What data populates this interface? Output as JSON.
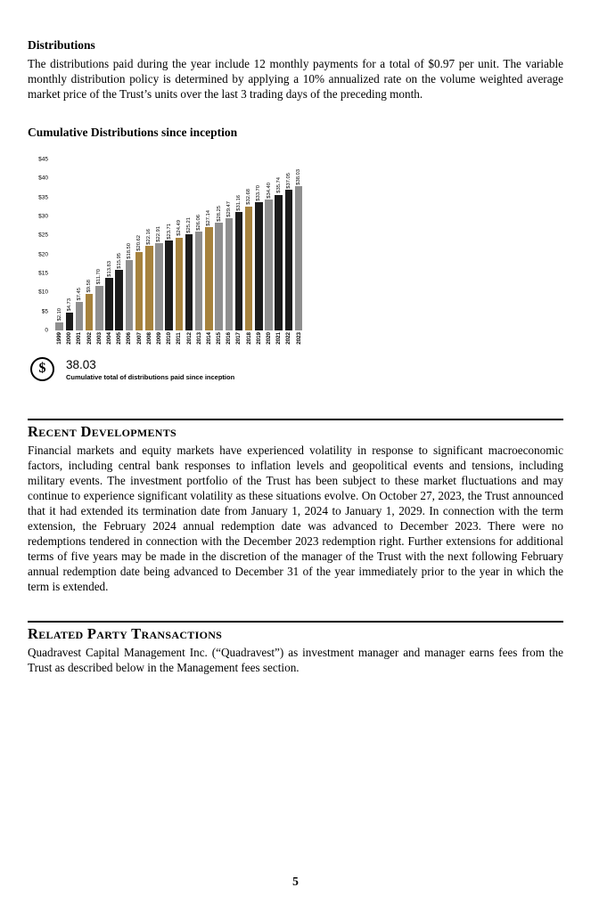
{
  "page": {
    "number": "5"
  },
  "distributions": {
    "heading": "Distributions",
    "body": "The distributions paid during the year include 12 monthly payments for a total of $0.97 per unit. The variable monthly distribution policy is determined by applying a 10% annualized rate on the volume weighted average market price of the Trust’s units over the last 3 trading days of the preceding month."
  },
  "chart": {
    "heading": "Cumulative Distributions since inception",
    "summary_value": "38.03",
    "summary_caption": "Cumulative total of distributions paid since inception",
    "dollar_icon_glyph": "$"
  },
  "chart_data": {
    "type": "bar",
    "title": "Cumulative Distributions since inception",
    "categories": [
      "1999",
      "2000",
      "2001",
      "2002",
      "2003",
      "2004",
      "2005",
      "2006",
      "2007",
      "2008",
      "2009",
      "2010",
      "2011",
      "2012",
      "2013",
      "2014",
      "2015",
      "2016",
      "2017",
      "2018",
      "2019",
      "2020",
      "2021",
      "2022",
      "2023"
    ],
    "values": [
      2.1,
      4.73,
      7.45,
      9.58,
      11.7,
      13.83,
      15.95,
      18.5,
      20.62,
      22.16,
      22.91,
      23.71,
      24.49,
      25.21,
      26.06,
      27.14,
      28.25,
      29.47,
      31.16,
      32.68,
      33.7,
      34.4,
      35.74,
      37.05,
      38.03
    ],
    "labels": [
      "$2.10",
      "$4.73",
      "$7.45",
      "$9.58",
      "$11.70",
      "$13.83",
      "$15.95",
      "$18.50",
      "$20.62",
      "$22.16",
      "$22.91",
      "$23.71",
      "$24.49",
      "$25.21",
      "$26.06",
      "$27.14",
      "$28.25",
      "$29.47",
      "$31.16",
      "$32.68",
      "$33.70",
      "$34.40",
      "$35.74",
      "$37.05",
      "$38.03"
    ],
    "xlabel": "",
    "ylabel": "",
    "ylim": [
      0,
      45
    ],
    "yticks": [
      "$45",
      "$40",
      "$35",
      "$30",
      "$25",
      "$20",
      "$15",
      "$10",
      "$5",
      "0"
    ],
    "grid": false,
    "legend": false,
    "bar_colors": [
      "#8f8f8f",
      "#1b1b1b",
      "#8f8f8f",
      "#a6823d",
      "#8f8f8f",
      "#1b1b1b",
      "#1b1b1b",
      "#8f8f8f",
      "#a6823d",
      "#a6823d",
      "#8f8f8f",
      "#1b1b1b",
      "#a6823d",
      "#1b1b1b",
      "#8f8f8f",
      "#a6823d",
      "#8f8f8f",
      "#8f8f8f",
      "#1b1b1b",
      "#a6823d",
      "#1b1b1b",
      "#8f8f8f",
      "#1b1b1b",
      "#1b1b1b",
      "#8f8f8f"
    ]
  },
  "recent_developments": {
    "heading": "Recent Developments",
    "body": "Financial markets and equity markets have experienced volatility in response to significant macroeconomic factors, including central bank responses to inflation levels and geopolitical events and tensions, including military events. The investment portfolio of the Trust has been subject to these market fluctuations and may continue to experience significant volatility as these situations evolve. On October 27, 2023, the Trust announced that it had extended its termination date from January 1, 2024 to January 1, 2029. In connection with the term extension, the February 2024 annual redemption date was advanced to December 2023. There were no redemptions tendered in connection with the December 2023 redemption right. Further extensions for additional terms of five years may be made in the discretion of the manager of the Trust with the next following February annual redemption date being advanced to December 31 of the year immediately prior to the year in which the term is extended."
  },
  "related_party": {
    "heading": "Related Party Transactions",
    "body": "Quadravest Capital Management Inc. (“Quadravest”) as investment manager and manager earns fees from the Trust as described below in the Management fees section."
  }
}
